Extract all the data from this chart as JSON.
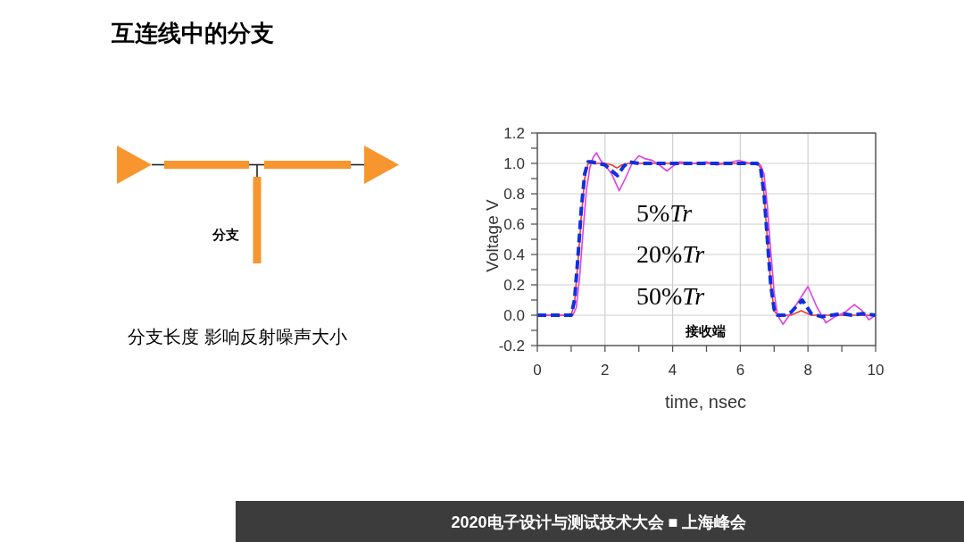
{
  "chart_data": {
    "type": "line",
    "title": "互连线中的分支",
    "xlabel": "time, nsec",
    "ylabel": "Voltage V",
    "annotations": [
      "分支",
      "分支长度 影响反射噪声大小",
      "5%Tr",
      "20%Tr",
      "50%Tr",
      "接收端",
      "2020电子设计与测试技术大会 ■ 上海峰会"
    ],
    "xlim": [
      0,
      10
    ],
    "ylim": [
      -0.2,
      1.2
    ],
    "xticks": [
      0,
      {
        "value": 1,
        "label": null
      },
      2,
      {
        "value": 3,
        "label": null
      },
      4,
      {
        "value": 5,
        "label": null
      },
      6,
      {
        "value": 7,
        "label": null
      },
      8,
      {
        "value": 9,
        "label": null
      },
      10
    ],
    "yticks": [
      -0.2,
      {
        "value": -0.1,
        "label": null
      },
      {
        "value": 0,
        "label": "0.0"
      },
      {
        "value": 0.1,
        "label": null
      },
      0.2,
      {
        "value": 0.3,
        "label": null
      },
      0.4,
      {
        "value": 0.5,
        "label": null
      },
      0.6,
      {
        "value": 0.7,
        "label": null
      },
      0.8,
      {
        "value": 0.9,
        "label": null
      },
      {
        "value": 1,
        "label": "1.0"
      },
      {
        "value": 1.1,
        "label": null
      },
      1.2
    ],
    "grid": true,
    "series": [
      {
        "color": "#ee3b2b",
        "line_style": "solid",
        "x": [
          0,
          1.0,
          1.1,
          1.2,
          1.3,
          1.4,
          1.5,
          1.7,
          2.0,
          2.2,
          2.35,
          2.5,
          2.7,
          3.0,
          4,
          5,
          6,
          6.5,
          6.6,
          6.7,
          6.8,
          6.9,
          7.0,
          7.1,
          7.5,
          7.8,
          8.1,
          8.5,
          9,
          10
        ],
        "values": [
          0,
          0,
          0.08,
          0.35,
          0.65,
          0.9,
          1.0,
          1.0,
          1.0,
          0.99,
          0.97,
          0.99,
          1.0,
          1.0,
          1.0,
          1.0,
          1.0,
          1.0,
          0.97,
          0.8,
          0.5,
          0.2,
          0.03,
          0,
          0,
          0.03,
          0,
          0,
          0,
          0
        ]
      },
      {
        "color": "#e040e0",
        "line_style": "solid",
        "x": [
          0,
          1.05,
          1.15,
          1.25,
          1.35,
          1.45,
          1.55,
          1.65,
          1.75,
          1.87,
          2.0,
          2.2,
          2.42,
          2.6,
          2.8,
          3.0,
          3.2,
          3.4,
          3.6,
          3.83,
          4.0,
          4.2,
          4.6,
          5.0,
          5.3,
          5.6,
          5.95,
          6.3,
          6.6,
          6.7,
          6.8,
          6.9,
          7.0,
          7.1,
          7.26,
          7.45,
          7.6,
          8.0,
          8.25,
          8.53,
          8.8,
          9.1,
          9.37,
          9.6,
          9.8,
          10
        ],
        "values": [
          0,
          0,
          0.05,
          0.25,
          0.55,
          0.82,
          0.97,
          1.04,
          1.07,
          1.02,
          0.99,
          0.93,
          0.82,
          0.9,
          1.0,
          1.05,
          1.03,
          1.02,
          0.99,
          0.95,
          0.98,
          1.01,
          1.0,
          1.01,
          0.99,
          1.0,
          1.02,
          1.0,
          0.99,
          0.93,
          0.72,
          0.42,
          0.15,
          0.0,
          -0.06,
          0.0,
          0.05,
          0.19,
          0.06,
          -0.05,
          -0.01,
          0.02,
          0.07,
          0.03,
          -0.03,
          0.0
        ]
      },
      {
        "color": "#1030e0",
        "line_style": "dashed",
        "x": [
          0,
          1.0,
          1.1,
          1.2,
          1.3,
          1.4,
          1.5,
          1.6,
          1.8,
          2.0,
          2.15,
          2.37,
          2.55,
          2.7,
          3.0,
          3.5,
          4,
          5,
          6,
          6.5,
          6.6,
          6.7,
          6.8,
          6.9,
          7.0,
          7.1,
          7.3,
          7.5,
          7.83,
          8.1,
          8.4,
          8.7,
          9.0,
          9.3,
          9.6,
          10
        ],
        "values": [
          0,
          0,
          0.1,
          0.38,
          0.7,
          0.93,
          1.01,
          1.01,
          1.0,
          0.99,
          0.96,
          0.92,
          0.98,
          1.01,
          1.0,
          1.0,
          1.0,
          1.0,
          1.0,
          1.0,
          0.97,
          0.8,
          0.5,
          0.2,
          0.04,
          0.0,
          0.0,
          0.02,
          0.1,
          0.01,
          -0.01,
          0.0,
          0.01,
          0.0,
          0.01,
          0.0
        ]
      }
    ]
  }
}
